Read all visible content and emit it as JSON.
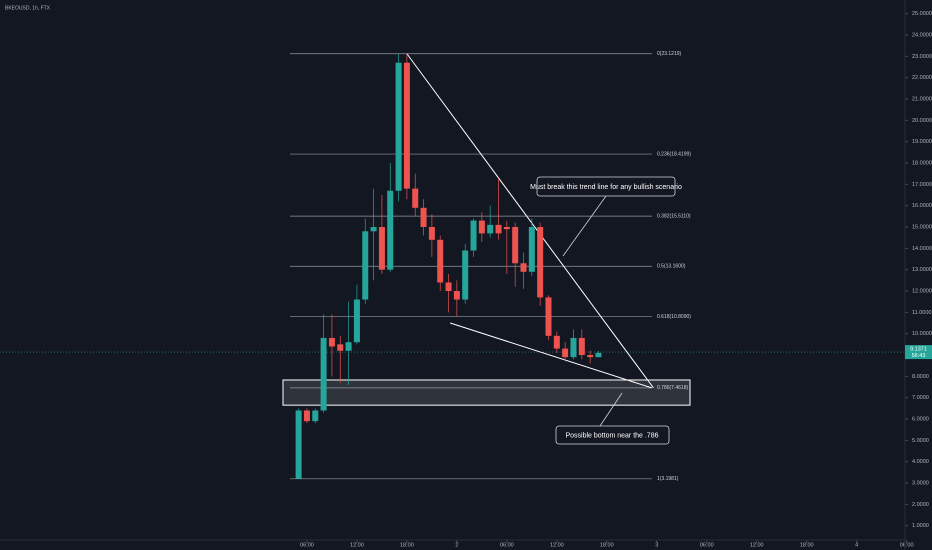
{
  "chart_data": {
    "type": "candlestick",
    "title": "BKEOUSD, 1h, FTX",
    "x": [
      5,
      6,
      7,
      8,
      9,
      10,
      11,
      12,
      13,
      14,
      15,
      16,
      17,
      18,
      19,
      20,
      21,
      22,
      23,
      24,
      25,
      26,
      27,
      28,
      29,
      30,
      31,
      32,
      33,
      34,
      35,
      36,
      37,
      38,
      39,
      40,
      41
    ],
    "open": [
      3.2,
      6.4,
      5.9,
      6.4,
      9.8,
      9.5,
      9.2,
      9.6,
      11.6,
      14.8,
      15.0,
      13.0,
      16.7,
      22.7,
      16.8,
      15.9,
      15.0,
      14.4,
      12.4,
      12.0,
      11.6,
      13.9,
      15.3,
      14.7,
      15.1,
      15.0,
      15.0,
      13.3,
      12.9,
      15.0,
      11.7,
      9.9,
      9.3,
      8.9,
      9.8,
      9.0,
      8.9
    ],
    "high": [
      6.5,
      6.5,
      6.5,
      10.9,
      10.9,
      9.9,
      11.5,
      12.3,
      15.4,
      16.8,
      16.5,
      18.0,
      23.1,
      23.1,
      17.5,
      16.3,
      15.6,
      14.6,
      12.8,
      12.5,
      14.2,
      15.4,
      15.7,
      16.0,
      17.3,
      15.3,
      15.2,
      13.8,
      15.4,
      15.2,
      11.8,
      10.1,
      9.6,
      10.2,
      10.2,
      9.2,
      9.2
    ],
    "low": [
      3.2,
      5.8,
      5.8,
      6.3,
      8.0,
      7.7,
      7.6,
      9.5,
      11.4,
      12.5,
      12.8,
      12.9,
      16.2,
      16.3,
      15.5,
      14.6,
      13.6,
      12.0,
      11.0,
      10.8,
      11.4,
      13.6,
      14.3,
      14.5,
      14.4,
      12.8,
      12.2,
      12.1,
      12.7,
      11.3,
      9.7,
      9.1,
      8.7,
      8.8,
      8.8,
      8.6,
      8.9
    ],
    "close": [
      6.4,
      5.9,
      6.4,
      9.8,
      9.4,
      9.2,
      9.6,
      11.6,
      14.8,
      15.0,
      13.0,
      16.7,
      22.7,
      16.8,
      15.9,
      15.0,
      14.4,
      12.4,
      12.0,
      11.6,
      13.9,
      15.3,
      14.7,
      15.1,
      14.7,
      14.9,
      13.3,
      12.9,
      15.0,
      11.7,
      9.9,
      9.3,
      8.9,
      9.8,
      9.0,
      8.9,
      9.1
    ],
    "up_color": "#26a69a",
    "down_color": "#ef5350",
    "xlim": [
      -30.85,
      77.8
    ],
    "ylim": [
      0.33,
      25.64
    ],
    "xticks": [
      {
        "value": 6,
        "label": "06:00"
      },
      {
        "value": 12,
        "label": "12:00"
      },
      {
        "value": 18,
        "label": "18:00"
      },
      {
        "value": 24,
        "label": "2"
      },
      {
        "value": 30,
        "label": "06:00"
      },
      {
        "value": 36,
        "label": "12:00"
      },
      {
        "value": 42,
        "label": "18:00"
      },
      {
        "value": 48,
        "label": "3"
      },
      {
        "value": 54,
        "label": "06:00"
      },
      {
        "value": 60,
        "label": "12:00"
      },
      {
        "value": 66,
        "label": "18:00"
      },
      {
        "value": 72,
        "label": "4"
      },
      {
        "value": 78,
        "label": "06:00"
      }
    ],
    "yticks": [
      {
        "value": 1,
        "label": "1.0000"
      },
      {
        "value": 2,
        "label": "2.0000"
      },
      {
        "value": 3,
        "label": "3.0000"
      },
      {
        "value": 4,
        "label": "4.0000"
      },
      {
        "value": 5,
        "label": "5.0000"
      },
      {
        "value": 6,
        "label": "6.0000"
      },
      {
        "value": 7,
        "label": "7.0000"
      },
      {
        "value": 8,
        "label": "8.0000"
      },
      {
        "value": 10,
        "label": "10.0000"
      },
      {
        "value": 11,
        "label": "11.0000"
      },
      {
        "value": 12,
        "label": "12.0000"
      },
      {
        "value": 13,
        "label": "13.0000"
      },
      {
        "value": 14,
        "label": "14.0000"
      },
      {
        "value": 15,
        "label": "15.0000"
      },
      {
        "value": 16,
        "label": "16.0000"
      },
      {
        "value": 17,
        "label": "17.0000"
      },
      {
        "value": 18,
        "label": "18.0000"
      },
      {
        "value": 19,
        "label": "19.0000"
      },
      {
        "value": 20,
        "label": "20.0000"
      },
      {
        "value": 21,
        "label": "21.0000"
      },
      {
        "value": 22,
        "label": "22.0000"
      },
      {
        "value": 23,
        "label": "23.0000"
      },
      {
        "value": 24,
        "label": "24.0000"
      },
      {
        "value": 25,
        "label": "25.0000"
      }
    ],
    "grid": false,
    "last_price": 9.1371,
    "countdown": "56:43",
    "fib_levels": [
      {
        "value": 23.1219,
        "label": "0(23.1219)"
      },
      {
        "value": 18.4199,
        "label": "0.236(18.4199)"
      },
      {
        "value": 15.511,
        "label": "0.382(15.5110)"
      },
      {
        "value": 13.16,
        "label": "0.5(13.1600)"
      },
      {
        "value": 10.809,
        "label": "0.618(10.8090)"
      },
      {
        "value": 7.4618,
        "label": "0.786(7.4618)"
      },
      {
        "value": 3.1981,
        "label": "1(3.1981)"
      }
    ],
    "trendlines": [
      {
        "x": [
          18,
          47.6
        ],
        "y": [
          23.12,
          7.46
        ]
      },
      {
        "x": [
          23.2,
          47.4
        ],
        "y": [
          10.5,
          7.46
        ]
      }
    ],
    "zone": [
      6.65,
      7.83
    ],
    "annotations": [
      "Must break this trend line for any bullish scenario",
      "Possible bottom near the .786"
    ]
  }
}
